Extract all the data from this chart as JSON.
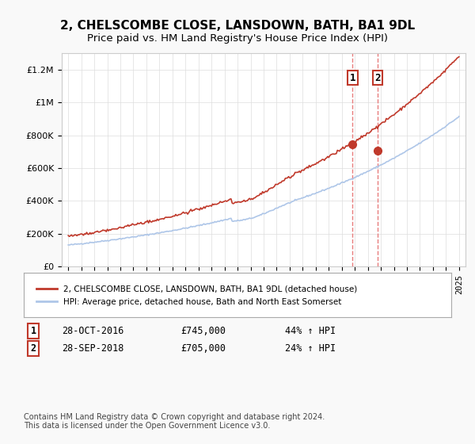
{
  "title": "2, CHELSCOMBE CLOSE, LANSDOWN, BATH, BA1 9DL",
  "subtitle": "Price paid vs. HM Land Registry's House Price Index (HPI)",
  "title_fontsize": 11,
  "subtitle_fontsize": 9.5,
  "hpi_color": "#aec6e8",
  "price_color": "#c0392b",
  "marker_color": "#c0392b",
  "vline_color": "#e87c7c",
  "sale1_date": 2016.83,
  "sale1_price": 745000,
  "sale1_label": "1",
  "sale2_date": 2018.75,
  "sale2_price": 705000,
  "sale2_label": "2",
  "ylim": [
    0,
    1300000
  ],
  "xlim_left": 1994.5,
  "xlim_right": 2025.5,
  "legend1_text": "2, CHELSCOMBE CLOSE, LANSDOWN, BATH, BA1 9DL (detached house)",
  "legend2_text": "HPI: Average price, detached house, Bath and North East Somerset",
  "table_row1": "1    28-OCT-2016         £745,000        44% ↑ HPI",
  "table_row2": "2    28-SEP-2018         £705,000        24% ↑ HPI",
  "footnote": "Contains HM Land Registry data © Crown copyright and database right 2024.\nThis data is licensed under the Open Government Licence v3.0.",
  "bg_color": "#f9f9f9",
  "plot_bg": "#ffffff",
  "grid_color": "#dddddd"
}
